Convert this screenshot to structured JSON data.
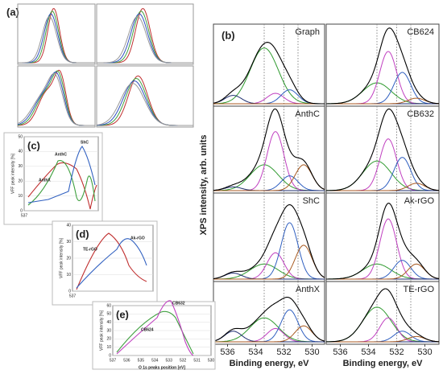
{
  "panel_a": {
    "label": "(a)"
  },
  "panel_b": {
    "label": "(b)",
    "ylabel": "XPS intensity, arb. units",
    "xlabel": "Binding energy, eV",
    "xticks": [
      536,
      534,
      532,
      530
    ],
    "panels": [
      "Graph",
      "CB624",
      "AnthC",
      "CB632",
      "ShC",
      "Ak-rGO",
      "AnthX",
      "TE-rGO"
    ]
  },
  "panel_c": {
    "label": "(c)",
    "ylabel": "VFF peak intensity [%]",
    "yticks": [
      0,
      10,
      20,
      30,
      40,
      50
    ],
    "xtick": 537,
    "annotations": [
      "AnthX",
      "AnthC",
      "ShC"
    ]
  },
  "panel_d": {
    "label": "(d)",
    "ylabel": "VFF peak intensity [%]",
    "yticks": [
      0,
      10,
      20,
      30,
      40
    ],
    "xtick": 537,
    "annotations": [
      "TE-rGO",
      "Ak-rGO"
    ]
  },
  "panel_e": {
    "label": "(e)",
    "ylabel": "VFF peak intensity [%]",
    "yticks": [
      0,
      10,
      20,
      30,
      40,
      50,
      60
    ],
    "xticks": [
      537,
      536,
      535,
      534,
      533,
      532,
      531,
      530
    ],
    "xlabel": "O 1s peaks position [eV]",
    "annotations": [
      "CB624",
      "CB632"
    ]
  }
}
